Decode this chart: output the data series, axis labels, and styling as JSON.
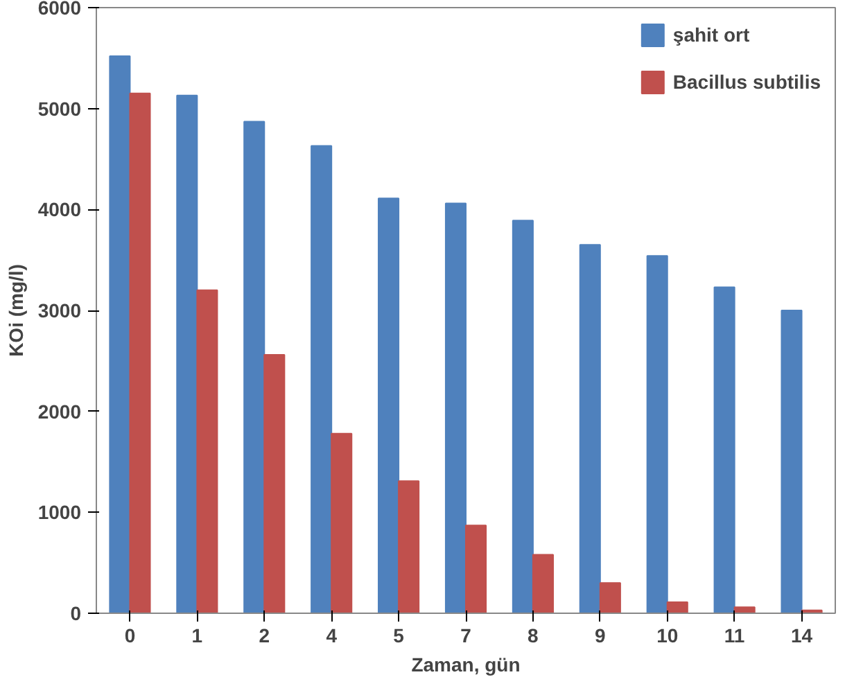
{
  "chart_data": {
    "type": "bar",
    "xlabel": "Zaman, gün",
    "ylabel": "KOi (mg/l)",
    "categories": [
      "0",
      "1",
      "2",
      "4",
      "5",
      "7",
      "8",
      "9",
      "10",
      "11",
      "14"
    ],
    "series": [
      {
        "name": "şahit ort",
        "color": "#4f81bd",
        "values": [
          5520,
          5130,
          4870,
          4630,
          4110,
          4060,
          3890,
          3650,
          3540,
          3230,
          3000
        ]
      },
      {
        "name": "Bacillus subtilis",
        "color": "#c0504d",
        "values": [
          5150,
          3200,
          2560,
          1780,
          1310,
          870,
          580,
          300,
          110,
          60,
          30
        ]
      }
    ],
    "ylim": [
      0,
      6000
    ],
    "yticks": [
      0,
      1000,
      2000,
      3000,
      4000,
      5000,
      6000
    ],
    "grid": false,
    "legend": "top right"
  }
}
